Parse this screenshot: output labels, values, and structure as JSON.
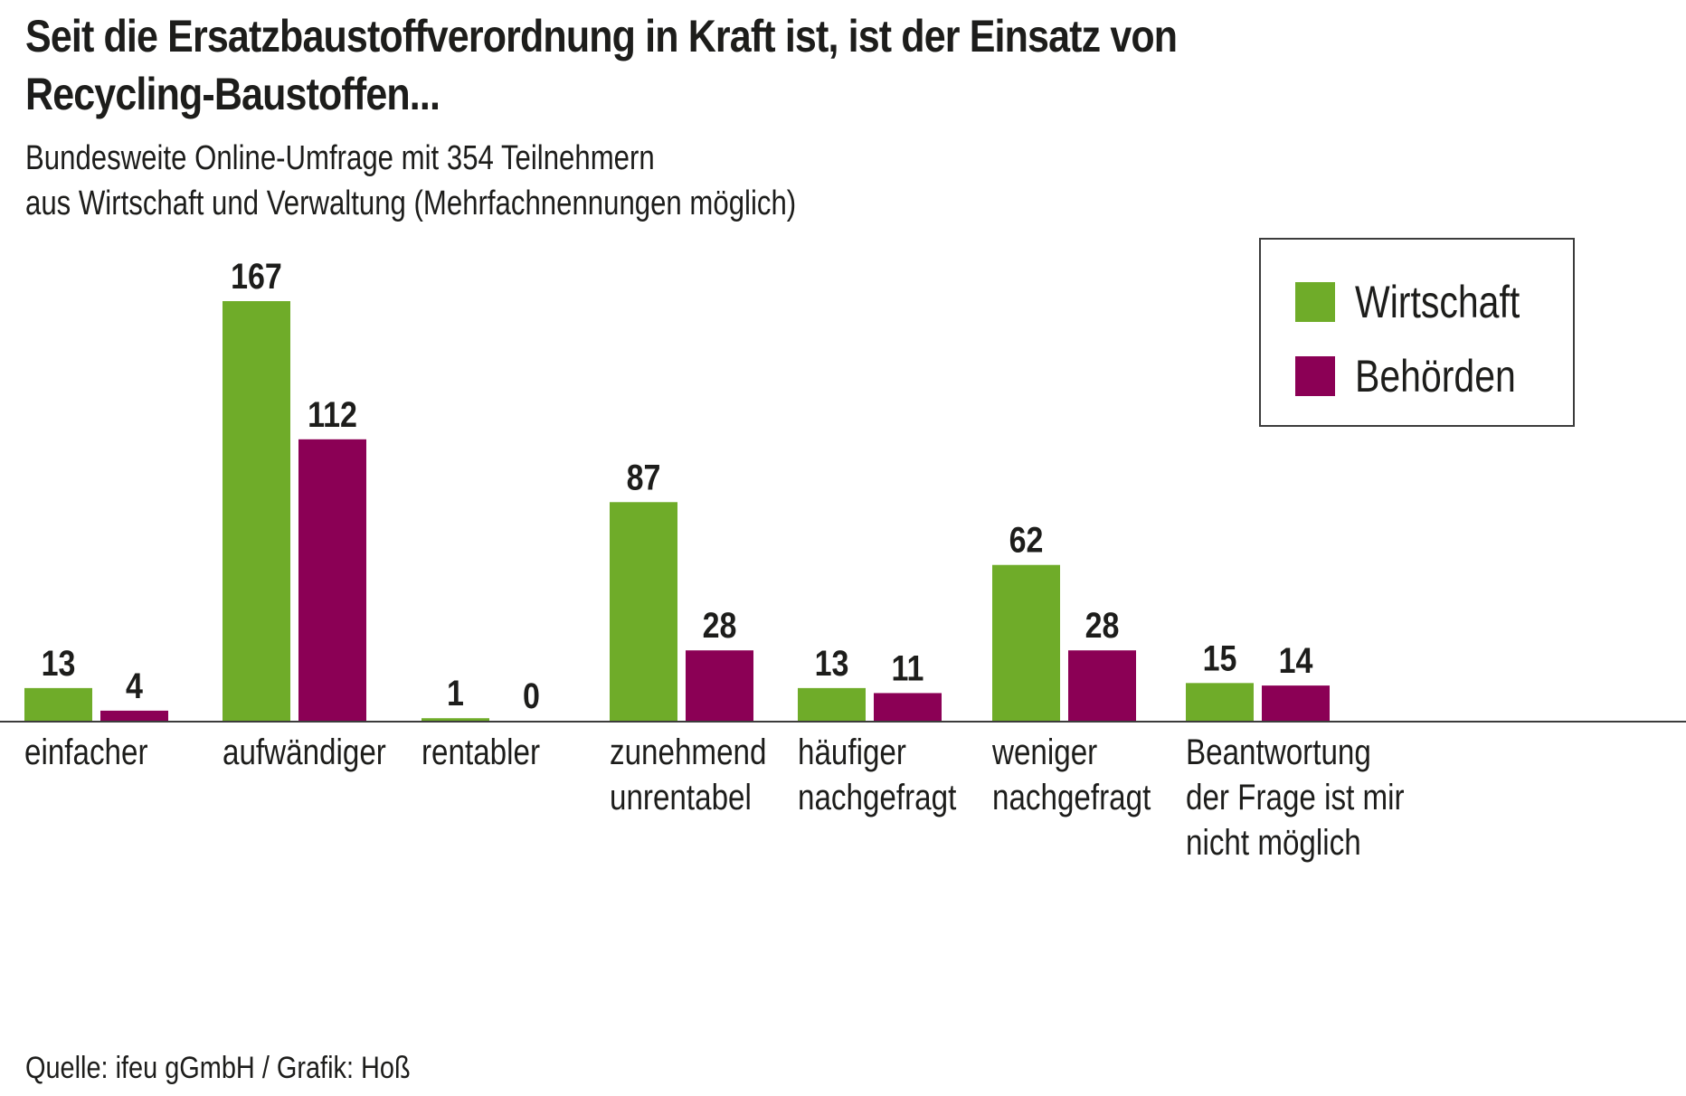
{
  "chart_data": {
    "type": "bar",
    "title": "Seit die Ersatzbaustoffverordnung in Kraft ist, ist der Einsatz von Recycling-Baustoffen...",
    "title_lines": [
      "Seit die Ersatzbaustoffverordnung in Kraft ist, ist der Einsatz von",
      "Recycling-Baustoffen..."
    ],
    "subtitle_lines": [
      "Bundesweite Online-Umfrage mit 354 Teilnehmern",
      "aus Wirtschaft und Verwaltung (Mehrfachnennungen möglich)"
    ],
    "xlabel": "",
    "ylabel": "",
    "ylim": [
      0,
      167
    ],
    "grid": false,
    "legend_position": "top-right",
    "categories": [
      "einfacher",
      "aufwändiger",
      "rentabler",
      "zunehmend unrentabel",
      "häufiger nachgefragt",
      "weniger nachgefragt",
      "Beantwortung der Frage ist mir nicht möglich"
    ],
    "category_lines": [
      [
        "einfacher"
      ],
      [
        "aufwändiger"
      ],
      [
        "rentabler"
      ],
      [
        "zunehmend",
        "unrentabel"
      ],
      [
        "häufiger",
        "nachgefragt"
      ],
      [
        "weniger",
        "nachgefragt"
      ],
      [
        "Beantwortung",
        "der Frage ist mir",
        "nicht möglich"
      ]
    ],
    "series": [
      {
        "name": "Wirtschaft",
        "color": "#6fac29",
        "values": [
          13,
          167,
          1,
          87,
          13,
          62,
          15
        ]
      },
      {
        "name": "Behörden",
        "color": "#8b0055",
        "values": [
          4,
          112,
          0,
          28,
          11,
          28,
          14
        ]
      }
    ],
    "source": "Quelle: ifeu gGmbH / Grafik: Hoß"
  }
}
